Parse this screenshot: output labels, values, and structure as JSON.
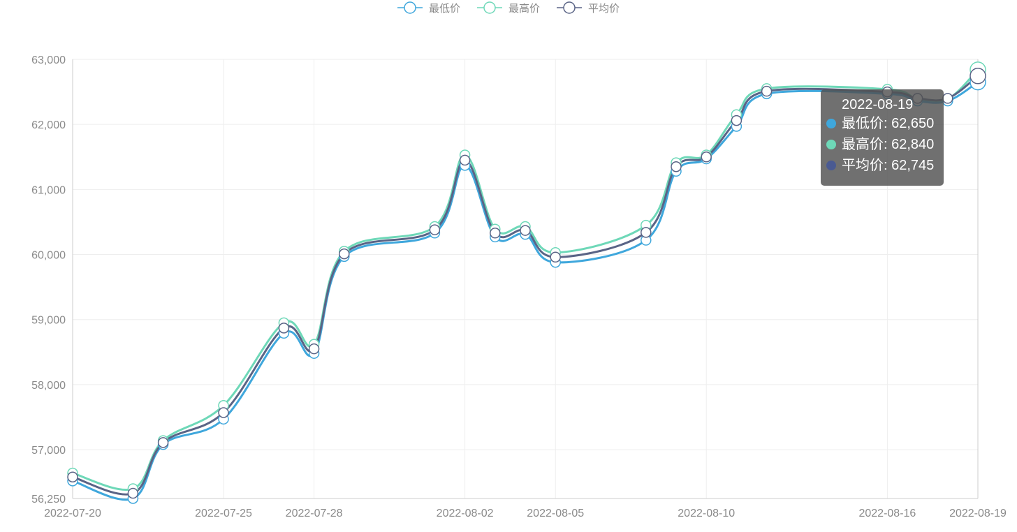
{
  "colors": {
    "low": "#3fa7dc",
    "high": "#6ed8b8",
    "avg": "#5a6486",
    "avg_dot": "#4a5a92",
    "grid": "#eeeeee",
    "axis": "#cccccc",
    "text": "#8a8a8a"
  },
  "chart_data": {
    "type": "line",
    "smooth": true,
    "x": [
      "2022-07-20",
      "2022-07-22",
      "2022-07-23",
      "2022-07-25",
      "2022-07-27",
      "2022-07-28",
      "2022-07-29",
      "2022-08-01",
      "2022-08-02",
      "2022-08-03",
      "2022-08-04",
      "2022-08-05",
      "2022-08-08",
      "2022-08-09",
      "2022-08-10",
      "2022-08-11",
      "2022-08-12",
      "2022-08-16",
      "2022-08-17",
      "2022-08-18",
      "2022-08-19"
    ],
    "x_tick_labels": [
      "2022-07-20",
      "2022-07-25",
      "2022-07-28",
      "2022-08-02",
      "2022-08-05",
      "2022-08-10",
      "2022-08-16",
      "2022-08-19"
    ],
    "ylim": [
      56250,
      63000
    ],
    "y_ticks": [
      56250,
      57000,
      58000,
      59000,
      60000,
      61000,
      62000,
      63000
    ],
    "y_tick_labels": [
      "56,250",
      "57,000",
      "58,000",
      "59,000",
      "60,000",
      "61,000",
      "62,000",
      "63,000"
    ],
    "grid": true,
    "legend_position": "top-center",
    "series": [
      {
        "name": "最低价",
        "color_key": "low",
        "values": [
          56520,
          56250,
          57080,
          57470,
          58790,
          58480,
          59970,
          60330,
          61370,
          60270,
          60310,
          59880,
          60220,
          61280,
          61470,
          61970,
          62470,
          62470,
          62360,
          62360,
          62650
        ]
      },
      {
        "name": "最高价",
        "color_key": "high",
        "values": [
          56640,
          56400,
          57140,
          57680,
          58950,
          58620,
          60050,
          60430,
          61530,
          60390,
          60430,
          60030,
          60450,
          61410,
          61530,
          62150,
          62550,
          62540,
          62390,
          62390,
          62840
        ]
      },
      {
        "name": "平均价",
        "color_key": "avg",
        "values": [
          56580,
          56330,
          57110,
          57570,
          58870,
          58550,
          60010,
          60380,
          61450,
          60330,
          60370,
          59960,
          60340,
          61350,
          61500,
          62060,
          62510,
          62500,
          62400,
          62400,
          62745
        ]
      }
    ],
    "tooltip": {
      "title": "2022-08-19",
      "rows": [
        {
          "label": "最低价: 62,650",
          "color_key": "low"
        },
        {
          "label": "最高价: 62,840",
          "color_key": "high"
        },
        {
          "label": "平均价: 62,745",
          "color_key": "avg_dot"
        }
      ]
    }
  }
}
